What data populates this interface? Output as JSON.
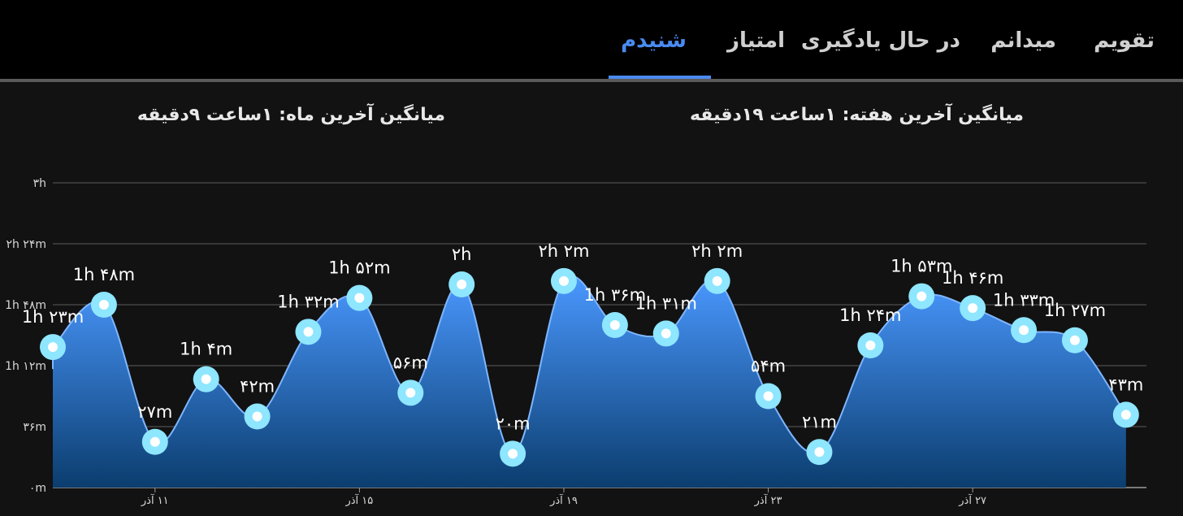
{
  "tabs": [
    {
      "label": "تقویم",
      "active": false
    },
    {
      "label": "میدانم",
      "active": false
    },
    {
      "label": "در حال یادگیری",
      "active": false
    },
    {
      "label": "امتیاز",
      "active": false
    },
    {
      "label": "شنیدم",
      "active": true
    }
  ],
  "averages": {
    "week": "میانگین آخرین هفته: ۱ساعت ۱۹دقیقه",
    "month": "میانگین آخرین ماه: ۱ساعت ۹دقیقه"
  },
  "colors": {
    "accent": "#4a8af0",
    "area_top": "#4a98ff",
    "area_bottom": "#0b3d6e",
    "marker_ring": "#8ee6ff"
  },
  "chart_data": {
    "type": "area",
    "x": [
      9,
      10,
      11,
      12,
      13,
      14,
      15,
      16,
      17,
      18,
      19,
      20,
      21,
      22,
      23,
      24,
      25,
      26,
      27,
      28,
      29,
      30
    ],
    "y_minutes": [
      83,
      108,
      27,
      64,
      42,
      92,
      112,
      56,
      120,
      20,
      122,
      96,
      91,
      122,
      54,
      21,
      84,
      113,
      106,
      93,
      87,
      43
    ],
    "point_labels": [
      "1h ۲۳m",
      "1h ۴۸m",
      "۲۷m",
      "1h ۴m",
      "۴۲m",
      "1h ۳۲m",
      "1h ۵۲m",
      "۵۶m",
      "۲h",
      "۲۰m",
      "۲h ۲m",
      "1h ۳۶m",
      "1h ۳۱m",
      "۲h ۲m",
      "۵۴m",
      "۲۱m",
      "1h ۲۴m",
      "1h ۵۳m",
      "1h ۴۶m",
      "1h ۳۳m",
      "1h ۲۷m",
      "۴۳m"
    ],
    "y_ticks": [
      "۰m",
      "۳۶m",
      "1h ۱۲m",
      "1h ۴۸m",
      "۲h ۲۴m",
      "۳h"
    ],
    "y_tick_values": [
      0,
      36,
      72,
      108,
      144,
      180
    ],
    "x_tick_labels": [
      "۱۱ آذر",
      "۱۵ آذر",
      "۱۹ آذر",
      "۲۳ آذر",
      "۲۷ آذر"
    ],
    "x_tick_values": [
      11,
      15,
      19,
      23,
      27
    ],
    "ylim": [
      0,
      180
    ],
    "xlim": [
      9,
      30.4
    ],
    "grid": true,
    "legend": "none"
  }
}
